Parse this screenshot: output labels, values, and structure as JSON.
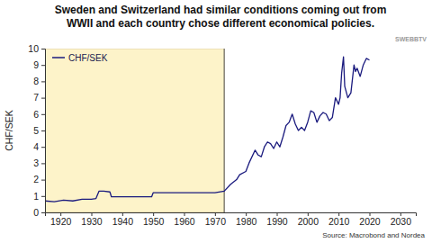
{
  "chart_data": {
    "type": "line",
    "title": "Sweden and Switzerland had similar conditions coming out from WWII and each country chose different economical policies.",
    "y_label": "CHF/SEK",
    "source": "Source: Macrobond and Nordea",
    "annotations": [
      "SWEBBTV"
    ],
    "x": [
      1915,
      1918,
      1921,
      1924,
      1927,
      1930,
      1931.5,
      1932.5,
      1934,
      1936,
      1936.5,
      1940,
      1945,
      1949.5,
      1950,
      1955,
      1960,
      1965,
      1970,
      1973,
      1975,
      1977,
      1978,
      1980,
      1981,
      1983,
      1984,
      1985,
      1986,
      1987,
      1988,
      1989,
      1990,
      1991,
      1992,
      1993,
      1994,
      1995,
      1996,
      1997,
      1998,
      1999,
      2000,
      2001,
      2002,
      2003,
      2004,
      2005,
      2006,
      2007,
      2008,
      2009,
      2010,
      2010.5,
      2011,
      2011.6,
      2012,
      2013,
      2014,
      2015,
      2015.5,
      2016,
      2017,
      2018,
      2019,
      2020
    ],
    "series": [
      {
        "name": "CHF/SEK",
        "color": "#1a1a7e",
        "values": [
          0.7,
          0.65,
          0.75,
          0.7,
          0.8,
          0.8,
          0.85,
          1.3,
          1.3,
          1.25,
          0.95,
          0.95,
          0.95,
          0.95,
          1.2,
          1.2,
          1.2,
          1.2,
          1.2,
          1.3,
          1.7,
          2.0,
          2.3,
          2.5,
          3.0,
          3.8,
          3.5,
          3.4,
          4.0,
          4.3,
          4.2,
          3.9,
          4.3,
          4.0,
          4.6,
          5.3,
          5.5,
          6.0,
          5.4,
          5.0,
          5.2,
          5.0,
          5.5,
          6.2,
          6.1,
          5.5,
          5.9,
          6.1,
          6.0,
          5.6,
          5.8,
          7.0,
          6.6,
          7.0,
          8.5,
          9.5,
          7.7,
          7.0,
          7.3,
          9.0,
          8.6,
          8.8,
          8.3,
          9.0,
          9.4,
          9.3
        ]
      }
    ],
    "shade": [
      1915,
      1973
    ],
    "shade_color": "#fdf3c9",
    "xlim": [
      1915,
      2035
    ],
    "xticks": [
      1920,
      1930,
      1940,
      1950,
      1960,
      1970,
      1980,
      1990,
      2000,
      2010,
      2020,
      2030
    ],
    "ylim": [
      0,
      10
    ],
    "yticks": [
      0,
      1,
      2,
      3,
      4,
      5,
      6,
      7,
      8,
      9,
      10
    ],
    "grid": false,
    "legend": "upper left"
  }
}
